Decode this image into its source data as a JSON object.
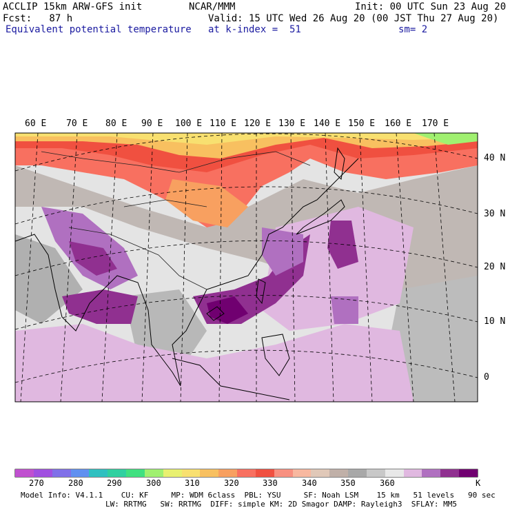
{
  "header": {
    "model": "ACCLIP 15km ARW-GFS init",
    "org": "NCAR/MMM",
    "init": "Init: 00 UTC Sun 23 Aug 20",
    "fcst": "Fcst:   87 h",
    "valid": "Valid: 15 UTC Wed 26 Aug 20 (00 JST Thu 27 Aug 20)",
    "field": "Equivalent potential temperature",
    "level": "at k-index =  51",
    "smooth": "sm= 2"
  },
  "longitude_labels": [
    "60 E",
    "70 E",
    "80 E",
    "90 E",
    "100 E",
    "110 E",
    "120 E",
    "130 E",
    "140 E",
    "150 E",
    "160 E",
    "170 E"
  ],
  "latitude_labels": [
    "40 N",
    "30 N",
    "20 N",
    "10 N",
    "0"
  ],
  "colorbar": {
    "colors": [
      "#c050d0",
      "#a050e0",
      "#8070e8",
      "#6090f0",
      "#30c0c0",
      "#30d0a0",
      "#40e080",
      "#a0f070",
      "#e8f070",
      "#f8e070",
      "#f8c060",
      "#f8a060",
      "#f87060",
      "#f05040",
      "#f89080",
      "#f8b8a0",
      "#e0c8b8",
      "#c0b0a8",
      "#a8a8a8",
      "#c8c8c8",
      "#e8e8e8",
      "#e0b8e0",
      "#b070c0",
      "#903090",
      "#700070"
    ],
    "labels": [
      "270",
      "280",
      "290",
      "300",
      "310",
      "320",
      "330",
      "340",
      "350",
      "360"
    ],
    "unit": "K"
  },
  "footer": {
    "line1": "Model Info: V4.1.1    CU: KF     MP: WDM 6class  PBL: YSU     SF: Noah LSM    15 km   51 levels   90 sec",
    "line2": "LW: RRTMG   SW: RRTMG  DIFF: simple KM: 2D Smagor DAMP: Rayleigh3  SFLAY: MM5"
  }
}
